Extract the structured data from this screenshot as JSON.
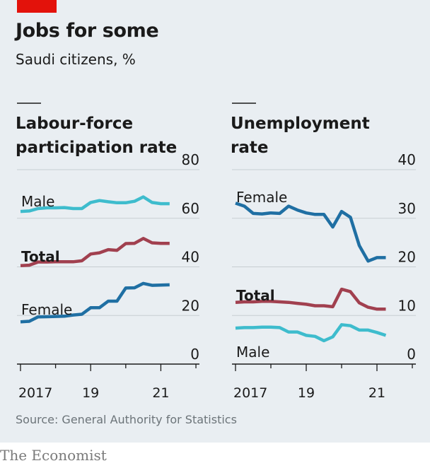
{
  "header": {
    "title": "Jobs for some",
    "subtitle": "Saudi citizens, %"
  },
  "source": "Source: General Authority for Statistics",
  "brand": "The Economist",
  "colors": {
    "background": "#e9eef2",
    "accent_red": "#e3120b",
    "male": "#3ebccd",
    "female": "#1f6fa3",
    "total": "#a1404f",
    "grid": "#c7cdd1",
    "text": "#1a1a1a",
    "muted": "#6c7479"
  },
  "chart_data": [
    {
      "type": "line",
      "title": "Labour-force participation rate",
      "title_lines": [
        "Labour-force",
        "participation rate"
      ],
      "xlabel": "",
      "ylabel": "",
      "ylim": [
        0,
        80
      ],
      "yticks": [
        0,
        20,
        40,
        60,
        80
      ],
      "xlim": [
        2016.9,
        2022.1
      ],
      "xticks": [
        2017,
        2018,
        2019,
        2020,
        2021,
        2022
      ],
      "xtick_labels": [
        {
          "x": 2017,
          "label": "2017"
        },
        {
          "x": 2019,
          "label": "19"
        },
        {
          "x": 2021,
          "label": "21"
        }
      ],
      "grid": true,
      "series": [
        {
          "name": "Male",
          "color_key": "male",
          "x": [
            2017.0,
            2017.25,
            2017.5,
            2017.75,
            2018.0,
            2018.25,
            2018.5,
            2018.75,
            2019.0,
            2019.25,
            2019.5,
            2019.75,
            2020.0,
            2020.25,
            2020.5,
            2020.75,
            2021.0,
            2021.25
          ],
          "values": [
            62.8,
            63.0,
            64.0,
            64.3,
            64.3,
            64.4,
            64.0,
            64.0,
            66.5,
            67.3,
            66.8,
            66.4,
            66.4,
            67.0,
            68.8,
            66.5,
            66.0,
            66.0
          ]
        },
        {
          "name": "Total",
          "color_key": "total",
          "x": [
            2017.0,
            2017.25,
            2017.5,
            2017.75,
            2018.0,
            2018.25,
            2018.5,
            2018.75,
            2019.0,
            2019.25,
            2019.5,
            2019.75,
            2020.0,
            2020.25,
            2020.5,
            2020.75,
            2021.0,
            2021.25
          ],
          "values": [
            40.5,
            40.7,
            42.0,
            42.0,
            42.1,
            42.1,
            42.1,
            42.5,
            45.3,
            45.8,
            47.1,
            46.8,
            49.6,
            49.7,
            51.7,
            49.9,
            49.7,
            49.7
          ]
        },
        {
          "name": "Female",
          "color_key": "female",
          "x": [
            2017.0,
            2017.25,
            2017.5,
            2017.75,
            2018.0,
            2018.25,
            2018.5,
            2018.75,
            2019.0,
            2019.25,
            2019.5,
            2019.75,
            2020.0,
            2020.25,
            2020.5,
            2020.75,
            2021.0,
            2021.25
          ],
          "values": [
            17.4,
            17.6,
            19.4,
            19.5,
            19.6,
            19.7,
            20.2,
            20.5,
            23.2,
            23.2,
            25.9,
            25.9,
            31.3,
            31.4,
            33.2,
            32.4,
            32.5,
            32.6
          ]
        }
      ]
    },
    {
      "type": "line",
      "title": "Unemployment rate",
      "title_lines": [
        "Unemployment",
        "rate"
      ],
      "xlabel": "",
      "ylabel": "",
      "ylim": [
        0,
        40
      ],
      "yticks": [
        0,
        10,
        20,
        30,
        40
      ],
      "xlim": [
        2016.9,
        2022.1
      ],
      "xticks": [
        2017,
        2018,
        2019,
        2020,
        2021,
        2022
      ],
      "xtick_labels": [
        {
          "x": 2017,
          "label": "2017"
        },
        {
          "x": 2019,
          "label": "19"
        },
        {
          "x": 2021,
          "label": "21"
        }
      ],
      "grid": true,
      "series": [
        {
          "name": "Female",
          "color_key": "female",
          "x": [
            2017.0,
            2017.25,
            2017.5,
            2017.75,
            2018.0,
            2018.25,
            2018.5,
            2018.75,
            2019.0,
            2019.25,
            2019.5,
            2019.75,
            2020.0,
            2020.25,
            2020.5,
            2020.75,
            2021.0,
            2021.25
          ],
          "values": [
            33.1,
            32.5,
            31.0,
            30.9,
            31.1,
            31.0,
            32.5,
            31.7,
            31.1,
            30.8,
            30.8,
            28.2,
            31.4,
            30.2,
            24.4,
            21.2,
            21.9,
            21.9
          ]
        },
        {
          "name": "Total",
          "color_key": "total",
          "x": [
            2017.0,
            2017.25,
            2017.5,
            2017.75,
            2018.0,
            2018.25,
            2018.5,
            2018.75,
            2019.0,
            2019.25,
            2019.5,
            2019.75,
            2020.0,
            2020.25,
            2020.5,
            2020.75,
            2021.0,
            2021.25
          ],
          "values": [
            12.7,
            12.8,
            12.8,
            12.9,
            12.9,
            12.8,
            12.7,
            12.5,
            12.3,
            12.0,
            12.0,
            11.8,
            15.4,
            14.9,
            12.6,
            11.7,
            11.3,
            11.3
          ]
        },
        {
          "name": "Male",
          "color_key": "male",
          "x": [
            2017.0,
            2017.25,
            2017.5,
            2017.75,
            2018.0,
            2018.25,
            2018.5,
            2018.75,
            2019.0,
            2019.25,
            2019.5,
            2019.75,
            2020.0,
            2020.25,
            2020.5,
            2020.75,
            2021.0,
            2021.25
          ],
          "values": [
            7.4,
            7.5,
            7.5,
            7.6,
            7.6,
            7.5,
            6.6,
            6.6,
            5.9,
            5.7,
            4.8,
            5.6,
            8.1,
            7.9,
            7.0,
            7.0,
            6.5,
            5.9
          ]
        }
      ]
    }
  ]
}
